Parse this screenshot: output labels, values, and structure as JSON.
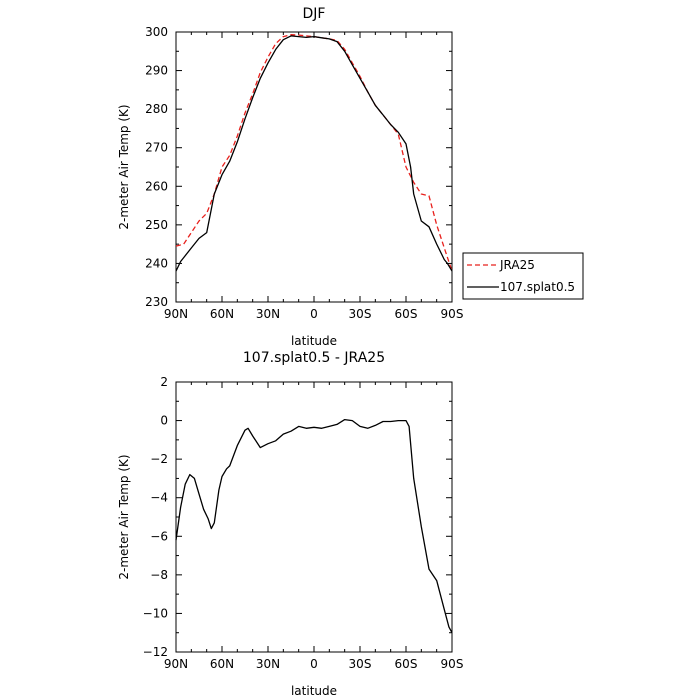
{
  "chart_data": [
    {
      "type": "line",
      "title": "DJF",
      "xlabel": "latitude",
      "ylabel": "2-meter Air Temp (K)",
      "xlim": [
        90,
        -90
      ],
      "ylim": [
        230,
        300
      ],
      "x_ticks": [
        90,
        60,
        30,
        0,
        -30,
        -60,
        -90
      ],
      "x_tick_labels": [
        "90N",
        "60N",
        "30N",
        "0",
        "30S",
        "60S",
        "90S"
      ],
      "y_ticks": [
        230,
        240,
        250,
        260,
        270,
        280,
        290,
        300
      ],
      "y_tick_labels": [
        "230",
        "240",
        "250",
        "260",
        "270",
        "280",
        "290",
        "300"
      ],
      "legend": "right",
      "series": [
        {
          "name": "JRA25",
          "color": "#e8201c",
          "dash": "dashed",
          "x": [
            90,
            85,
            80,
            75,
            70,
            65,
            60,
            55,
            50,
            45,
            40,
            35,
            30,
            25,
            20,
            15,
            10,
            5,
            0,
            -5,
            -10,
            -15,
            -20,
            -25,
            -30,
            -35,
            -40,
            -45,
            -50,
            -55,
            -60,
            -65,
            -70,
            -75,
            -80,
            -85,
            -90
          ],
          "y": [
            244.5,
            245,
            248,
            251,
            253,
            258,
            265,
            268,
            273,
            279,
            284,
            289.5,
            293.5,
            297,
            298.8,
            299.3,
            299.2,
            299,
            298.8,
            298.5,
            298.2,
            297.8,
            295.5,
            292,
            288.5,
            284.5,
            281,
            278.5,
            276,
            273.5,
            265,
            261,
            258,
            257.5,
            250,
            244,
            238
          ]
        },
        {
          "name": "107.splat0.5",
          "color": "#000000",
          "dash": "solid",
          "x": [
            90,
            87,
            85,
            80,
            75,
            70,
            65,
            60,
            55,
            50,
            45,
            40,
            35,
            30,
            25,
            20,
            15,
            10,
            5,
            0,
            -5,
            -10,
            -15,
            -20,
            -25,
            -30,
            -35,
            -40,
            -45,
            -50,
            -55,
            -60,
            -63,
            -65,
            -70,
            -75,
            -80,
            -85,
            -87,
            -90
          ],
          "y": [
            238,
            240.5,
            241.5,
            244,
            246.5,
            248,
            258,
            263,
            266.5,
            271.5,
            277.5,
            283,
            288,
            292,
            295.5,
            298,
            299,
            298.8,
            298.6,
            298.8,
            298.5,
            298.2,
            297.5,
            295,
            291.5,
            288,
            284.5,
            281,
            278.5,
            276,
            274,
            271,
            265,
            258,
            251,
            249.5,
            245,
            241,
            240,
            238
          ]
        }
      ]
    },
    {
      "type": "line",
      "title": "107.splat0.5 - JRA25",
      "xlabel": "latitude",
      "ylabel": "2-meter Air Temp (K)",
      "xlim": [
        90,
        -90
      ],
      "ylim": [
        -12,
        2
      ],
      "x_ticks": [
        90,
        60,
        30,
        0,
        -30,
        -60,
        -90
      ],
      "x_tick_labels": [
        "90N",
        "60N",
        "30N",
        "0",
        "30S",
        "60S",
        "90S"
      ],
      "y_ticks": [
        2,
        0,
        -2,
        -4,
        -6,
        -8,
        -10,
        -12
      ],
      "y_tick_labels": [
        "2",
        "0",
        "−2",
        "−4",
        "−6",
        "−8",
        "−10",
        "−12"
      ],
      "series": [
        {
          "color": "#000000",
          "dash": "solid",
          "x": [
            90,
            87,
            84,
            81,
            78,
            75,
            72,
            69,
            67,
            65,
            62,
            60,
            57,
            55,
            50,
            45,
            43,
            40,
            35,
            30,
            25,
            20,
            15,
            10,
            5,
            0,
            -5,
            -10,
            -15,
            -20,
            -25,
            -30,
            -35,
            -40,
            -45,
            -50,
            -55,
            -60,
            -62,
            -65,
            -70,
            -75,
            -80,
            -85,
            -88,
            -90
          ],
          "y": [
            -6.2,
            -4.5,
            -3.3,
            -2.8,
            -3.0,
            -3.8,
            -4.6,
            -5.1,
            -5.6,
            -5.3,
            -3.6,
            -2.9,
            -2.5,
            -2.35,
            -1.3,
            -0.5,
            -0.4,
            -0.8,
            -1.4,
            -1.2,
            -1.05,
            -0.7,
            -0.55,
            -0.3,
            -0.4,
            -0.35,
            -0.4,
            -0.3,
            -0.2,
            0.05,
            0.0,
            -0.3,
            -0.4,
            -0.25,
            -0.05,
            -0.05,
            0.0,
            0.0,
            -0.3,
            -3.0,
            -5.5,
            -7.7,
            -8.3,
            -9.8,
            -10.7,
            -11.0
          ]
        }
      ]
    }
  ]
}
